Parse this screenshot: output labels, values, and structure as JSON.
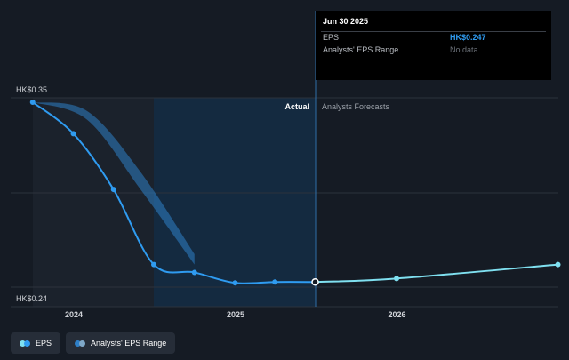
{
  "chart_data": {
    "type": "line",
    "y_axis": {
      "max_label": "HK$0.35",
      "min_label": "HK$0.24",
      "ylim": [
        0.24,
        0.35
      ]
    },
    "x_ticks": [
      "2024",
      "2025",
      "2026"
    ],
    "sections": {
      "actual_label": "Actual",
      "forecast_label": "Analysts Forecasts"
    },
    "series": [
      {
        "name": "EPS",
        "color": "#2f9bf0",
        "points": [
          {
            "x": "2023-09-30",
            "y": 0.35
          },
          {
            "x": "2023-12-31",
            "y": 0.332
          },
          {
            "x": "2024-03-31",
            "y": 0.3
          },
          {
            "x": "2024-06-30",
            "y": 0.257
          },
          {
            "x": "2024-09-30",
            "y": 0.2525
          },
          {
            "x": "2024-12-31",
            "y": 0.2465
          },
          {
            "x": "2025-03-31",
            "y": 0.247
          },
          {
            "x": "2025-06-30",
            "y": 0.247
          }
        ]
      },
      {
        "name": "EPS forecast",
        "color": "#7fe0f0",
        "points": [
          {
            "x": "2025-06-30",
            "y": 0.247
          },
          {
            "x": "2025-12-31",
            "y": 0.249
          },
          {
            "x": "2026-12-31",
            "y": 0.257
          }
        ]
      },
      {
        "name": "Analysts' EPS Range",
        "color": "#2e7fc7",
        "upper": [
          {
            "x": "2023-09-30",
            "y": 0.35
          },
          {
            "x": "2024-01-31",
            "y": 0.345
          },
          {
            "x": "2024-05-31",
            "y": 0.31
          },
          {
            "x": "2024-09-30",
            "y": 0.263
          }
        ],
        "lower": [
          {
            "x": "2023-09-30",
            "y": 0.35
          },
          {
            "x": "2024-01-31",
            "y": 0.34
          },
          {
            "x": "2024-05-31",
            "y": 0.3
          },
          {
            "x": "2024-09-30",
            "y": 0.257
          }
        ]
      }
    ]
  },
  "tooltip": {
    "date": "Jun 30 2025",
    "rows": [
      {
        "label": "EPS",
        "value": "HK$0.247"
      },
      {
        "label": "Analysts' EPS Range",
        "value": "No data"
      }
    ]
  },
  "legend": [
    {
      "label": "EPS",
      "colors": [
        "#7fe0f0",
        "#2f9bf0"
      ]
    },
    {
      "label": "Analysts' EPS Range",
      "colors": [
        "#2e7fc7",
        "#7fa8c8"
      ]
    }
  ],
  "colors": {
    "background": "#151b24",
    "actual_shade": "#1e2631",
    "forecast_shade": "#16304a",
    "grid": "#2c333d",
    "axis_text": "#d0d3d8",
    "section_text": "#9aa0a8"
  }
}
